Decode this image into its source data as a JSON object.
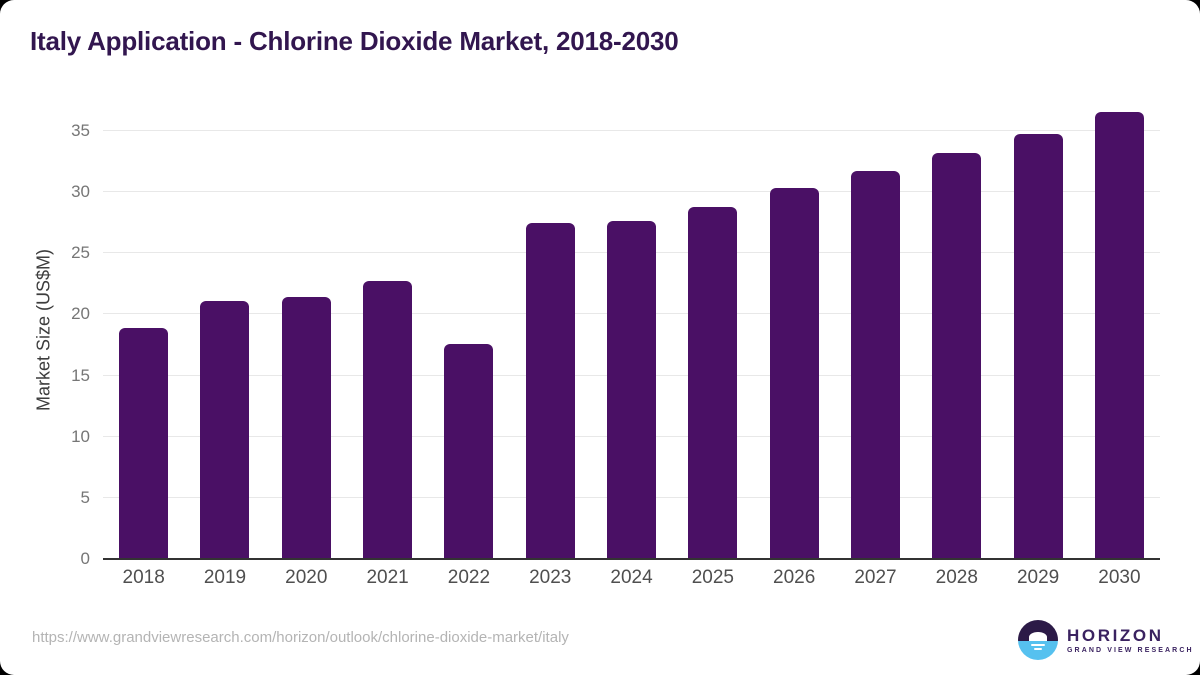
{
  "header": {
    "title": "Italy Application - Chlorine Dioxide Market, 2018-2030"
  },
  "chart_data": {
    "type": "bar",
    "title": "Italy Application - Chlorine Dioxide Market, 2018-2030",
    "categories": [
      "2018",
      "2019",
      "2020",
      "2021",
      "2022",
      "2023",
      "2024",
      "2025",
      "2026",
      "2027",
      "2028",
      "2029",
      "2030"
    ],
    "values": [
      18.9,
      21.1,
      21.4,
      22.7,
      17.6,
      27.5,
      27.6,
      28.8,
      30.3,
      31.7,
      33.2,
      34.7,
      36.5
    ],
    "xlabel": "",
    "ylabel": "Market Size (US$M)",
    "y_ticks": [
      0,
      5,
      10,
      15,
      20,
      25,
      30,
      35
    ],
    "ylim": [
      0,
      36.7
    ],
    "grid": "horizontal",
    "legend": "none",
    "bar_color": "#4a1065"
  },
  "footer": {
    "url": "https://www.grandviewresearch.com/horizon/outlook/chlorine-dioxide-market/italy"
  },
  "logo": {
    "name": "HORIZON",
    "tagline": "GRAND VIEW RESEARCH"
  },
  "colors": {
    "bar": "#4a1065",
    "title": "#32164f",
    "tick_label": "#767676",
    "x_label": "#4f4f4f",
    "axis_line": "#333333",
    "gridline": "#e8e8e8",
    "url_text": "#b4b4b4",
    "logo_purple": "#3a2260",
    "logo_dark": "#2c1a47",
    "logo_blue": "#56c1ef",
    "background": "#ffffff",
    "outer_border": "#000000"
  }
}
